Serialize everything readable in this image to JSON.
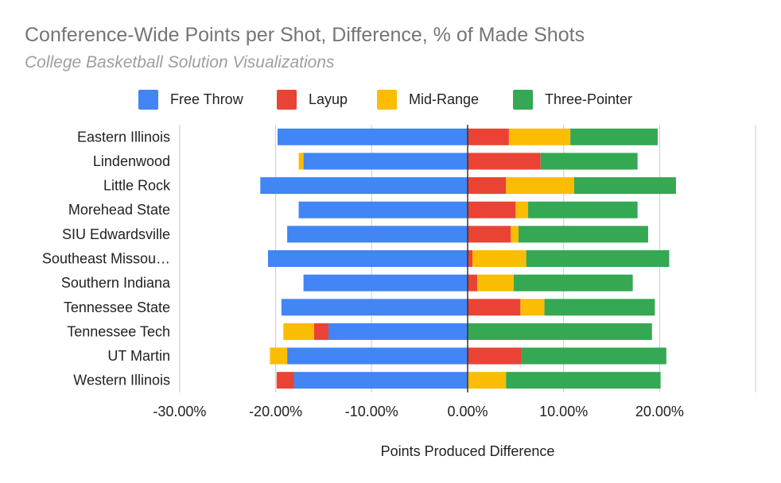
{
  "title": "Conference-Wide Points per Shot, Difference, % of Made Shots",
  "subtitle": "College Basketball Solution Visualizations",
  "chart_data": {
    "type": "bar",
    "orientation": "horizontal",
    "stacked": true,
    "title": "Conference-Wide Points per Shot, Difference, % of Made Shots",
    "subtitle": "College Basketball Solution Visualizations",
    "xlabel": "Points Produced Difference",
    "ylabel": "",
    "xlim": [
      -30,
      30
    ],
    "x_ticks": [
      "-30.00%",
      "-20.00%",
      "-10.00%",
      "0.00%",
      "10.00%",
      "20.00%"
    ],
    "x_tick_values": [
      -30,
      -20,
      -10,
      0,
      10,
      20
    ],
    "grid": true,
    "legend_position": "top",
    "categories": [
      "Eastern Illinois",
      "Lindenwood",
      "Little Rock",
      "Morehead State",
      "SIU Edwardsville",
      "Southeast Missou…",
      "Southern Indiana",
      "Tennessee State",
      "Tennessee Tech",
      "UT Martin",
      "Western Illinois"
    ],
    "series": [
      {
        "name": "Free Throw",
        "color": "#4285f4",
        "values": [
          -19.8,
          -17.1,
          -21.6,
          -17.6,
          -18.8,
          -20.8,
          -17.1,
          -19.4,
          -14.5,
          -18.8,
          -18.1
        ]
      },
      {
        "name": "Layup",
        "color": "#ea4335",
        "values": [
          4.3,
          7.6,
          4.0,
          5.0,
          4.5,
          0.5,
          1.0,
          5.5,
          -1.5,
          5.6,
          -1.8
        ]
      },
      {
        "name": "Mid-Range",
        "color": "#fbbc04",
        "values": [
          6.4,
          -0.5,
          7.1,
          1.3,
          0.8,
          5.6,
          3.8,
          2.5,
          -3.2,
          -1.8,
          4.0
        ]
      },
      {
        "name": "Three-Pointer",
        "color": "#34a853",
        "values": [
          9.1,
          10.1,
          10.6,
          11.4,
          13.5,
          14.9,
          12.4,
          11.5,
          19.2,
          15.1,
          16.1
        ]
      }
    ]
  }
}
